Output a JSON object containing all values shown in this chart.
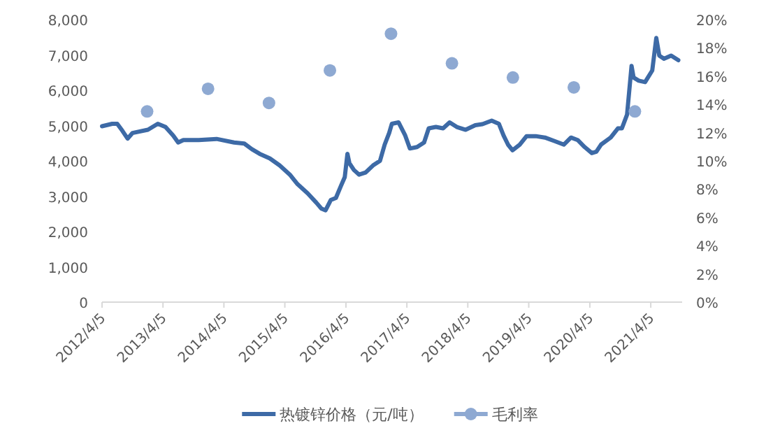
{
  "chart_data": {
    "type": "line",
    "xlim": [
      "2012-04-05",
      "2021-10-10"
    ],
    "xticks": [
      {
        "value": "2012-04-05",
        "label": "2012/4/5"
      },
      {
        "value": "2013-04-05",
        "label": "2013/4/5"
      },
      {
        "value": "2014-04-05",
        "label": "2014/4/5"
      },
      {
        "value": "2015-04-05",
        "label": "2015/4/5"
      },
      {
        "value": "2016-04-05",
        "label": "2016/4/5"
      },
      {
        "value": "2017-04-05",
        "label": "2017/4/5"
      },
      {
        "value": "2018-04-05",
        "label": "2018/4/5"
      },
      {
        "value": "2019-04-05",
        "label": "2019/4/5"
      },
      {
        "value": "2020-04-05",
        "label": "2020/4/5"
      },
      {
        "value": "2021-04-05",
        "label": "2021/4/5"
      }
    ],
    "ylim": [
      0,
      8000
    ],
    "yticks": [
      0,
      {
        "value": 1000,
        "label": "1,000"
      },
      {
        "value": 2000,
        "label": "2,000"
      },
      {
        "value": 3000,
        "label": "3,000"
      },
      {
        "value": 4000,
        "label": "4,000"
      },
      {
        "value": 5000,
        "label": "5,000"
      },
      {
        "value": 6000,
        "label": "6,000"
      },
      {
        "value": 7000,
        "label": "7,000"
      },
      {
        "value": 8000,
        "label": "8,000"
      }
    ],
    "y2lim": [
      0,
      20
    ],
    "y2ticks": [
      {
        "value": 0,
        "label": "0%"
      },
      {
        "value": 2,
        "label": "2%"
      },
      {
        "value": 4,
        "label": "4%"
      },
      {
        "value": 6,
        "label": "6%"
      },
      {
        "value": 8,
        "label": "8%"
      },
      {
        "value": 10,
        "label": "10%"
      },
      {
        "value": 12,
        "label": "12%"
      },
      {
        "value": 14,
        "label": "14%"
      },
      {
        "value": 16,
        "label": "16%"
      },
      {
        "value": 18,
        "label": "18%"
      },
      {
        "value": 20,
        "label": "20%"
      }
    ],
    "grid": false,
    "legend": "bottom",
    "series": [
      {
        "name": "热镀锌价格（元/吨）",
        "color": "#3d6aa6",
        "line_style": "solid",
        "marker": "none",
        "x": [
          "2012-04-05",
          "2012-06-05",
          "2012-07-05",
          "2012-08-05",
          "2012-09-05",
          "2012-10-05",
          "2013-01-05",
          "2013-03-05",
          "2013-04-20",
          "2013-06-05",
          "2013-07-05",
          "2013-08-05",
          "2013-11-05",
          "2014-02-20",
          "2014-06-05",
          "2014-08-05",
          "2014-09-20",
          "2014-11-05",
          "2015-01-05",
          "2015-03-05",
          "2015-05-05",
          "2015-06-20",
          "2015-08-20",
          "2015-10-10",
          "2015-11-10",
          "2015-12-05",
          "2016-01-05",
          "2016-02-05",
          "2016-03-05",
          "2016-03-29",
          "2016-04-14",
          "2016-04-26",
          "2016-05-23",
          "2016-06-23",
          "2016-08-01",
          "2016-09-14",
          "2016-10-26",
          "2016-11-23",
          "2016-12-20",
          "2017-01-05",
          "2017-02-14",
          "2017-03-26",
          "2017-04-23",
          "2017-06-05",
          "2017-07-17",
          "2017-08-14",
          "2017-09-26",
          "2017-11-08",
          "2017-12-17",
          "2018-01-29",
          "2018-03-23",
          "2018-05-20",
          "2018-07-02",
          "2018-08-26",
          "2018-10-08",
          "2018-11-05",
          "2018-12-02",
          "2018-12-29",
          "2019-02-10",
          "2019-03-23",
          "2019-05-17",
          "2019-07-11",
          "2019-09-07",
          "2019-11-01",
          "2019-12-14",
          "2020-01-23",
          "2020-03-05",
          "2020-04-17",
          "2020-05-14",
          "2020-06-11",
          "2020-08-08",
          "2020-09-20",
          "2020-10-14",
          "2020-11-14",
          "2020-12-11",
          "2020-12-23",
          "2021-01-23",
          "2021-03-02",
          "2021-04-14",
          "2021-05-08",
          "2021-05-26",
          "2021-06-23",
          "2021-08-05",
          "2021-09-17"
        ],
        "values": [
          4980,
          5050,
          5050,
          4850,
          4630,
          4790,
          4880,
          5050,
          4960,
          4720,
          4520,
          4590,
          4590,
          4620,
          4520,
          4490,
          4330,
          4200,
          4070,
          3870,
          3610,
          3340,
          3080,
          2820,
          2650,
          2600,
          2890,
          2950,
          3280,
          3540,
          4200,
          3930,
          3740,
          3610,
          3670,
          3870,
          4000,
          4460,
          4790,
          5050,
          5090,
          4720,
          4350,
          4390,
          4520,
          4920,
          4960,
          4920,
          5090,
          4960,
          4880,
          5010,
          5040,
          5140,
          5050,
          4720,
          4460,
          4300,
          4460,
          4700,
          4700,
          4660,
          4560,
          4460,
          4660,
          4590,
          4390,
          4220,
          4260,
          4460,
          4660,
          4920,
          4920,
          5310,
          6690,
          6360,
          6270,
          6230,
          6560,
          7480,
          6980,
          6890,
          6980,
          6850
        ]
      },
      {
        "name": "毛利率",
        "type": "scatter",
        "axis": "y2",
        "color": "#8ea9d2",
        "marker": "circle",
        "x": [
          "2012-12-31",
          "2013-12-31",
          "2014-12-31",
          "2015-12-31",
          "2016-12-31",
          "2017-12-31",
          "2018-12-31",
          "2019-12-31",
          "2020-12-31"
        ],
        "values": [
          13.5,
          15.1,
          14.1,
          16.4,
          19.0,
          16.9,
          15.9,
          15.2,
          13.5
        ]
      }
    ]
  }
}
